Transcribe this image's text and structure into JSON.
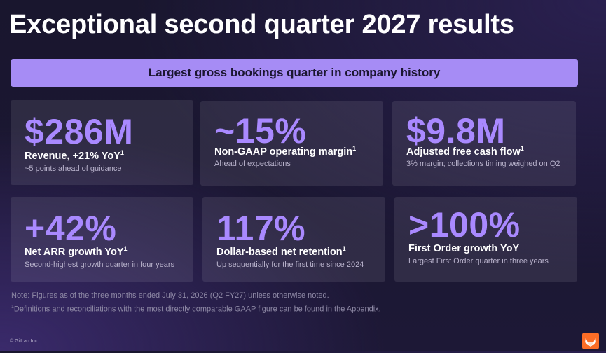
{
  "title": "Exceptional second quarter 2027 results",
  "banner": "Largest gross bookings quarter in company history",
  "cards": [
    {
      "metric": "$286M",
      "label": "Revenue, +21% YoY",
      "sup": "1",
      "sub": "~5 points ahead of guidance"
    },
    {
      "metric": "~15%",
      "label": "Non-GAAP operating margin",
      "sup": "1",
      "sub": "Ahead of expectations"
    },
    {
      "metric": "$9.8M",
      "label": "Adjusted free cash flow",
      "sup": "1",
      "sub": "3% margin; collections timing weighed on Q2"
    },
    {
      "metric": "+42%",
      "label": "Net ARR growth YoY",
      "sup": "1",
      "sub": "Second-highest growth quarter in four years"
    },
    {
      "metric": "117%",
      "label": "Dollar-based net retention",
      "sup": "1",
      "sub": "Up sequentially for the first time since 2024"
    },
    {
      "metric": ">100%",
      "label": "First Order growth YoY",
      "sup": "",
      "sub": "Largest First Order quarter in three years"
    }
  ],
  "notes": {
    "note1": "Note: Figures as of the three months ended July 31, 2026 (Q2 FY27) unless otherwise noted.",
    "note2_sup": "1",
    "note2": "Definitions and reconciliations with the most directly comparable GAAP figure can be found in the Appendix."
  },
  "footer": {
    "copyright": "© GitLab Inc.",
    "logo_icon": "gitlab-tanuki-icon",
    "logo_color": "#fc6d26"
  },
  "colors": {
    "accent": "#a989ff",
    "banner": "#a68cf5"
  }
}
